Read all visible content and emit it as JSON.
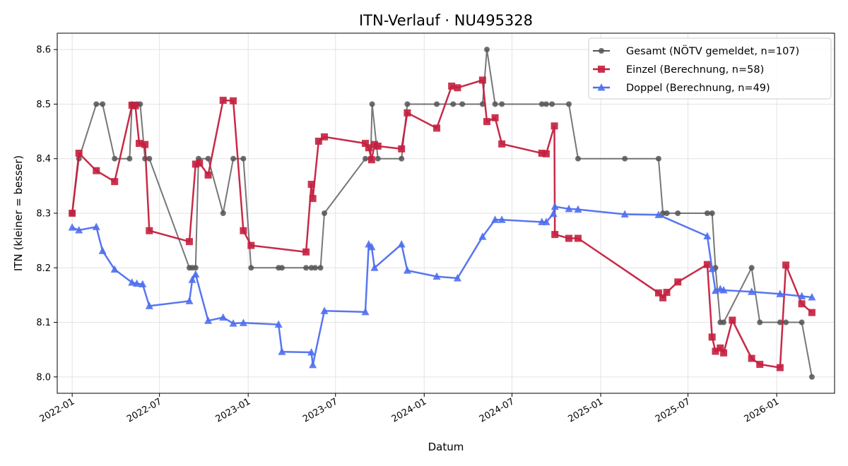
{
  "chart_data": {
    "type": "line",
    "title": "ITN-Verlauf · NU495328",
    "xlabel": "Datum",
    "ylabel": "ITN  (kleiner = besser)",
    "x_axis_type": "date",
    "xlim": [
      "2021-12-01",
      "2026-05-01"
    ],
    "ylim": [
      7.97,
      8.63
    ],
    "x_ticks": [
      "2022-01",
      "2022-07",
      "2023-01",
      "2023-07",
      "2024-01",
      "2024-07",
      "2025-01",
      "2025-07",
      "2026-01"
    ],
    "y_ticks": [
      "8.0",
      "8.1",
      "8.2",
      "8.3",
      "8.4",
      "8.5",
      "8.6"
    ],
    "grid": true,
    "legend_position": "top-right",
    "series": [
      {
        "name": "Gesamt (NÖTV gemeldet, n=107)",
        "color": "#555555",
        "marker": "circle",
        "points": [
          [
            "2022-01-01",
            8.3
          ],
          [
            "2022-01-15",
            8.4
          ],
          [
            "2022-02-20",
            8.5
          ],
          [
            "2022-03-05",
            8.5
          ],
          [
            "2022-03-30",
            8.4
          ],
          [
            "2022-04-30",
            8.4
          ],
          [
            "2022-05-05",
            8.5
          ],
          [
            "2022-05-15",
            8.5
          ],
          [
            "2022-05-22",
            8.5
          ],
          [
            "2022-06-01",
            8.4
          ],
          [
            "2022-06-10",
            8.4
          ],
          [
            "2022-09-01",
            8.2
          ],
          [
            "2022-09-07",
            8.2
          ],
          [
            "2022-09-14",
            8.2
          ],
          [
            "2022-09-20",
            8.4
          ],
          [
            "2022-10-10",
            8.4
          ],
          [
            "2022-11-10",
            8.3
          ],
          [
            "2022-12-01",
            8.4
          ],
          [
            "2022-12-22",
            8.4
          ],
          [
            "2023-01-07",
            8.2
          ],
          [
            "2023-03-05",
            8.2
          ],
          [
            "2023-03-12",
            8.2
          ],
          [
            "2023-05-01",
            8.2
          ],
          [
            "2023-05-12",
            8.2
          ],
          [
            "2023-05-20",
            8.2
          ],
          [
            "2023-05-31",
            8.2
          ],
          [
            "2023-06-08",
            8.3
          ],
          [
            "2023-09-01",
            8.4
          ],
          [
            "2023-09-12",
            8.4
          ],
          [
            "2023-09-15",
            8.5
          ],
          [
            "2023-09-27",
            8.4
          ],
          [
            "2023-11-15",
            8.4
          ],
          [
            "2023-11-27",
            8.5
          ],
          [
            "2024-01-27",
            8.5
          ],
          [
            "2024-03-01",
            8.5
          ],
          [
            "2024-03-20",
            8.5
          ],
          [
            "2024-05-01",
            8.5
          ],
          [
            "2024-05-10",
            8.6
          ],
          [
            "2024-05-27",
            8.5
          ],
          [
            "2024-06-10",
            8.5
          ],
          [
            "2024-09-01",
            8.5
          ],
          [
            "2024-09-10",
            8.5
          ],
          [
            "2024-09-22",
            8.5
          ],
          [
            "2024-10-27",
            8.5
          ],
          [
            "2024-11-15",
            8.4
          ],
          [
            "2025-02-20",
            8.4
          ],
          [
            "2025-05-01",
            8.4
          ],
          [
            "2025-05-10",
            8.3
          ],
          [
            "2025-05-18",
            8.3
          ],
          [
            "2025-06-10",
            8.3
          ],
          [
            "2025-08-10",
            8.3
          ],
          [
            "2025-08-20",
            8.3
          ],
          [
            "2025-08-27",
            8.2
          ],
          [
            "2025-09-06",
            8.1
          ],
          [
            "2025-09-13",
            8.1
          ],
          [
            "2025-11-10",
            8.2
          ],
          [
            "2025-11-27",
            8.1
          ],
          [
            "2026-01-08",
            8.1
          ],
          [
            "2026-01-20",
            8.1
          ],
          [
            "2026-02-22",
            8.1
          ],
          [
            "2026-03-15",
            8.0
          ]
        ]
      },
      {
        "name": "Einzel (Berechnung, n=58)",
        "color": "#c41f3e",
        "marker": "square",
        "points": [
          [
            "2022-01-01",
            8.3
          ],
          [
            "2022-01-15",
            8.41
          ],
          [
            "2022-02-20",
            8.378
          ],
          [
            "2022-03-30",
            8.358
          ],
          [
            "2022-05-05",
            8.498
          ],
          [
            "2022-05-12",
            8.497
          ],
          [
            "2022-05-20",
            8.428
          ],
          [
            "2022-06-01",
            8.426
          ],
          [
            "2022-06-10",
            8.268
          ],
          [
            "2022-09-01",
            8.248
          ],
          [
            "2022-09-14",
            8.39
          ],
          [
            "2022-09-22",
            8.392
          ],
          [
            "2022-10-10",
            8.37
          ],
          [
            "2022-11-10",
            8.507
          ],
          [
            "2022-12-01",
            8.506
          ],
          [
            "2022-12-22",
            8.268
          ],
          [
            "2023-01-07",
            8.241
          ],
          [
            "2023-05-01",
            8.229
          ],
          [
            "2023-05-12",
            8.353
          ],
          [
            "2023-05-15",
            8.327
          ],
          [
            "2023-05-27",
            8.432
          ],
          [
            "2023-06-08",
            8.44
          ],
          [
            "2023-09-01",
            8.428
          ],
          [
            "2023-09-08",
            8.42
          ],
          [
            "2023-09-14",
            8.398
          ],
          [
            "2023-09-20",
            8.426
          ],
          [
            "2023-09-27",
            8.423
          ],
          [
            "2023-11-15",
            8.418
          ],
          [
            "2023-11-27",
            8.484
          ],
          [
            "2024-01-27",
            8.456
          ],
          [
            "2024-02-27",
            8.533
          ],
          [
            "2024-03-10",
            8.53
          ],
          [
            "2024-05-01",
            8.544
          ],
          [
            "2024-05-10",
            8.468
          ],
          [
            "2024-05-27",
            8.475
          ],
          [
            "2024-06-10",
            8.427
          ],
          [
            "2024-09-01",
            8.41
          ],
          [
            "2024-09-10",
            8.409
          ],
          [
            "2024-09-27",
            8.46
          ],
          [
            "2024-09-28",
            8.261
          ],
          [
            "2024-10-27",
            8.254
          ],
          [
            "2024-11-15",
            8.254
          ],
          [
            "2025-05-01",
            8.154
          ],
          [
            "2025-05-10",
            8.145
          ],
          [
            "2025-05-18",
            8.155
          ],
          [
            "2025-06-10",
            8.174
          ],
          [
            "2025-08-10",
            8.206
          ],
          [
            "2025-08-20",
            8.073
          ],
          [
            "2025-08-27",
            8.047
          ],
          [
            "2025-09-06",
            8.053
          ],
          [
            "2025-09-13",
            8.044
          ],
          [
            "2025-10-01",
            8.104
          ],
          [
            "2025-11-10",
            8.034
          ],
          [
            "2025-11-27",
            8.023
          ],
          [
            "2026-01-08",
            8.017
          ],
          [
            "2026-01-20",
            8.205
          ],
          [
            "2026-02-22",
            8.134
          ],
          [
            "2026-03-15",
            8.118
          ]
        ]
      },
      {
        "name": "Doppel (Berechnung, n=49)",
        "color": "#4f6ff0",
        "marker": "triangle",
        "points": [
          [
            "2022-01-01",
            8.274
          ],
          [
            "2022-01-15",
            8.269
          ],
          [
            "2022-02-20",
            8.275
          ],
          [
            "2022-03-05",
            8.231
          ],
          [
            "2022-03-30",
            8.197
          ],
          [
            "2022-05-05",
            8.173
          ],
          [
            "2022-05-15",
            8.171
          ],
          [
            "2022-05-27",
            8.17
          ],
          [
            "2022-06-10",
            8.13
          ],
          [
            "2022-09-01",
            8.139
          ],
          [
            "2022-09-07",
            8.178
          ],
          [
            "2022-09-14",
            8.188
          ],
          [
            "2022-10-10",
            8.103
          ],
          [
            "2022-11-10",
            8.109
          ],
          [
            "2022-12-01",
            8.098
          ],
          [
            "2022-12-22",
            8.099
          ],
          [
            "2023-03-05",
            8.096
          ],
          [
            "2023-03-12",
            8.046
          ],
          [
            "2023-05-12",
            8.045
          ],
          [
            "2023-05-15",
            8.022
          ],
          [
            "2023-06-08",
            8.121
          ],
          [
            "2023-09-01",
            8.119
          ],
          [
            "2023-09-08",
            8.243
          ],
          [
            "2023-09-14",
            8.238
          ],
          [
            "2023-09-20",
            8.2
          ],
          [
            "2023-11-15",
            8.243
          ],
          [
            "2023-11-27",
            8.195
          ],
          [
            "2024-01-27",
            8.184
          ],
          [
            "2024-03-10",
            8.181
          ],
          [
            "2024-05-01",
            8.257
          ],
          [
            "2024-05-27",
            8.288
          ],
          [
            "2024-06-10",
            8.288
          ],
          [
            "2024-09-01",
            8.284
          ],
          [
            "2024-09-10",
            8.284
          ],
          [
            "2024-09-25",
            8.299
          ],
          [
            "2024-09-28",
            8.312
          ],
          [
            "2024-10-27",
            8.308
          ],
          [
            "2024-11-15",
            8.307
          ],
          [
            "2025-02-20",
            8.298
          ],
          [
            "2025-05-01",
            8.297
          ],
          [
            "2025-08-10",
            8.258
          ],
          [
            "2025-08-20",
            8.198
          ],
          [
            "2025-08-27",
            8.158
          ],
          [
            "2025-09-06",
            8.161
          ],
          [
            "2025-09-13",
            8.159
          ],
          [
            "2025-11-10",
            8.156
          ],
          [
            "2026-01-08",
            8.152
          ],
          [
            "2026-02-22",
            8.148
          ],
          [
            "2026-03-15",
            8.146
          ]
        ]
      }
    ]
  }
}
